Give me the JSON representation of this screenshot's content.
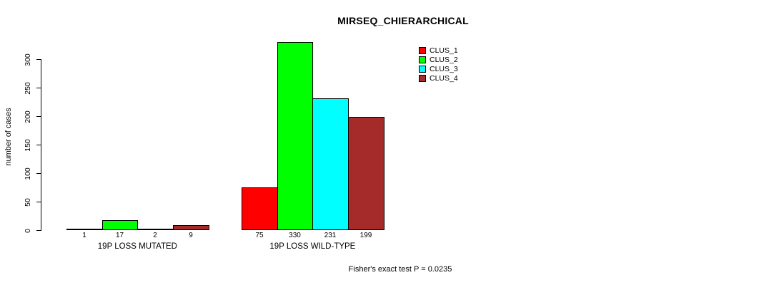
{
  "chart_data": {
    "type": "bar",
    "title": "MIRSEQ_CHIERARCHICAL",
    "xlabel": "",
    "ylabel": "number of cases",
    "annotation": "Fisher's exact test P = 0.0235",
    "categories": [
      "19P LOSS MUTATED",
      "19P LOSS WILD-TYPE"
    ],
    "series": [
      {
        "name": "CLUS_1",
        "color": "#ff0000",
        "values": [
          1,
          75
        ]
      },
      {
        "name": "CLUS_2",
        "color": "#00ff00",
        "values": [
          17,
          330
        ]
      },
      {
        "name": "CLUS_3",
        "color": "#00ffff",
        "values": [
          2,
          231
        ]
      },
      {
        "name": "CLUS_4",
        "color": "#a52a2a",
        "values": [
          9,
          199
        ]
      }
    ],
    "ylim": [
      0,
      330
    ],
    "yticks": [
      0,
      50,
      100,
      150,
      200,
      250,
      300
    ],
    "grid": false,
    "legend_position": "top-right",
    "bar_value_labels": true,
    "axis_color": "#000000",
    "background_color": "#ffffff"
  }
}
